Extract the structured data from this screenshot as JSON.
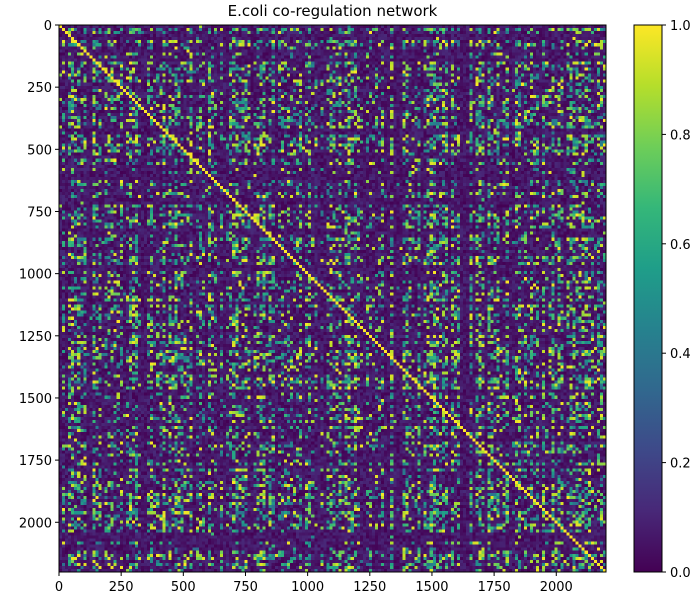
{
  "chart_data": {
    "type": "heatmap",
    "title": "E.coli co-regulation network",
    "xlabel": "",
    "ylabel": "",
    "x_ticks": [
      0,
      250,
      500,
      750,
      1000,
      1250,
      1500,
      1750,
      2000
    ],
    "y_ticks": [
      0,
      250,
      500,
      750,
      1000,
      1250,
      1500,
      1750,
      2000
    ],
    "x_range": [
      0,
      2200
    ],
    "y_range": [
      0,
      2200
    ],
    "matrix_size": 2200,
    "colorbar": {
      "range": [
        0.0,
        1.0
      ],
      "ticks": [
        "0.0",
        "0.2",
        "0.4",
        "0.6",
        "0.8",
        "1.0"
      ],
      "colormap": "viridis",
      "stops": [
        "#440154",
        "#482878",
        "#3e4989",
        "#31688e",
        "#26828e",
        "#1f9e89",
        "#35b779",
        "#6ece58",
        "#b5de2b",
        "#fde725"
      ]
    },
    "grid": false,
    "legend": "none",
    "values_note": ""
  }
}
